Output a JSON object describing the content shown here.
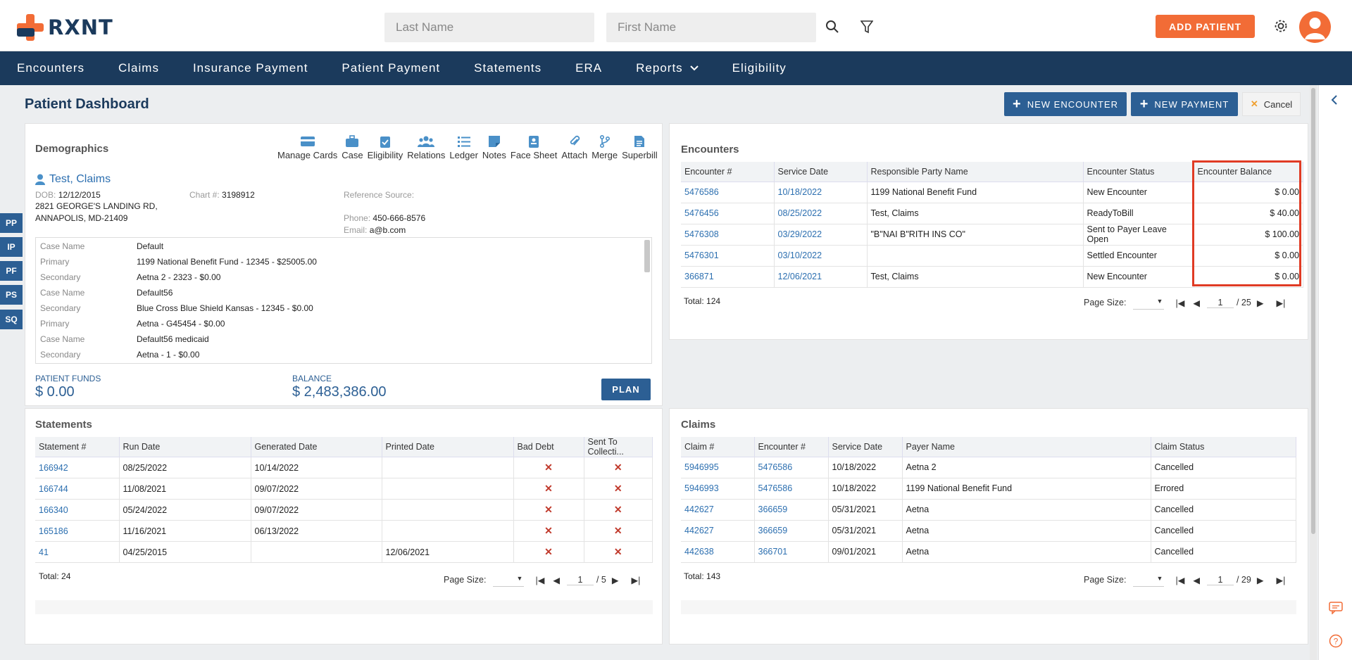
{
  "brand": {
    "name": "RXNT"
  },
  "search": {
    "last_name_placeholder": "Last Name",
    "first_name_placeholder": "First Name"
  },
  "header": {
    "add_patient": "ADD PATIENT"
  },
  "nav": {
    "items": [
      "Encounters",
      "Claims",
      "Insurance Payment",
      "Patient Payment",
      "Statements",
      "ERA",
      "Reports",
      "Eligibility"
    ]
  },
  "page": {
    "title": "Patient Dashboard",
    "new_encounter": "NEW ENCOUNTER",
    "new_payment": "NEW PAYMENT",
    "cancel": "Cancel"
  },
  "side_tabs": [
    "PP",
    "IP",
    "PF",
    "PS",
    "SQ"
  ],
  "demographics": {
    "title": "Demographics",
    "tools": [
      "Manage Cards",
      "Case",
      "Eligibility",
      "Relations",
      "Ledger",
      "Notes",
      "Face Sheet",
      "Attach",
      "Merge",
      "Superbill"
    ],
    "patient_name": "Test, Claims",
    "dob_label": "DOB:",
    "dob": "12/12/2015",
    "address1": "2821 GEORGE'S LANDING RD,",
    "address2": "ANNAPOLIS, MD-21409",
    "chart_label": "Chart #:",
    "chart": "3198912",
    "ref_label": "Reference Source:",
    "phone_label": "Phone:",
    "phone": "450-666-8576",
    "email_label": "Email:",
    "email": "a@b.com",
    "cases": [
      {
        "k": "Case Name",
        "v": "Default"
      },
      {
        "k": "Primary",
        "v": "1199 National Benefit Fund - 12345 - $25005.00"
      },
      {
        "k": "Secondary",
        "v": "Aetna 2 - 2323 - $0.00"
      },
      {
        "k": "Case Name",
        "v": "Default56"
      },
      {
        "k": "Secondary",
        "v": "Blue Cross Blue Shield Kansas - 12345 - $0.00"
      },
      {
        "k": "Primary",
        "v": "Aetna - G45454 - $0.00"
      },
      {
        "k": "Case Name",
        "v": "Default56 medicaid"
      },
      {
        "k": "Secondary",
        "v": "Aetna - 1 - $0.00"
      }
    ],
    "patient_funds_label": "PATIENT FUNDS",
    "patient_funds": "$ 0.00",
    "balance_label": "BALANCE",
    "balance": "$ 2,483,386.00",
    "plan": "PLAN"
  },
  "encounters": {
    "title": "Encounters",
    "headers": [
      "Encounter #",
      "Service Date",
      "Responsible Party Name",
      "Encounter Status",
      "Encounter Balance"
    ],
    "rows": [
      [
        "5476586",
        "10/18/2022",
        "1199 National Benefit Fund",
        "New Encounter",
        "$ 0.00"
      ],
      [
        "5476456",
        "08/25/2022",
        "Test, Claims",
        "ReadyToBill",
        "$ 40.00"
      ],
      [
        "5476308",
        "03/29/2022",
        "\"B\"NAI B\"RITH INS CO\"",
        "Sent to Payer Leave Open",
        "$ 100.00"
      ],
      [
        "5476301",
        "03/10/2022",
        "",
        "Settled Encounter",
        "$ 0.00"
      ],
      [
        "366871",
        "12/06/2021",
        "Test, Claims",
        "New Encounter",
        "$ 0.00"
      ]
    ],
    "total": "Total: 124",
    "page_size_label": "Page Size:",
    "page": "1",
    "of_pages": "/ 25"
  },
  "statements": {
    "title": "Statements",
    "headers": [
      "Statement #",
      "Run Date",
      "Generated Date",
      "Printed Date",
      "Bad Debt",
      "Sent To Collecti..."
    ],
    "rows": [
      [
        "166942",
        "08/25/2022",
        "10/14/2022",
        ""
      ],
      [
        "166744",
        "11/08/2021",
        "09/07/2022",
        ""
      ],
      [
        "166340",
        "05/24/2022",
        "09/07/2022",
        ""
      ],
      [
        "165186",
        "11/16/2021",
        "06/13/2022",
        ""
      ],
      [
        "41",
        "04/25/2015",
        "",
        "12/06/2021"
      ]
    ],
    "x_mark": "✕",
    "total": "Total: 24",
    "page_size_label": "Page Size:",
    "page": "1",
    "of_pages": "/ 5"
  },
  "claims": {
    "title": "Claims",
    "headers": [
      "Claim #",
      "Encounter #",
      "Service Date",
      "Payer Name",
      "Claim Status"
    ],
    "rows": [
      [
        "5946995",
        "5476586",
        "10/18/2022",
        "Aetna 2",
        "Cancelled"
      ],
      [
        "5946993",
        "5476586",
        "10/18/2022",
        "1199 National Benefit Fund",
        "Errored"
      ],
      [
        "442627",
        "366659",
        "05/31/2021",
        "Aetna",
        "Cancelled"
      ],
      [
        "442627",
        "366659",
        "05/31/2021",
        "Aetna",
        "Cancelled"
      ],
      [
        "442638",
        "366701",
        "09/01/2021",
        "Aetna",
        "Cancelled"
      ]
    ],
    "total": "Total: 143",
    "page_size_label": "Page Size:",
    "page": "1",
    "of_pages": "/ 29"
  },
  "colors": {
    "brand_orange": "#f26c36",
    "navy": "#1b3a5c",
    "primary_blue": "#2c5f94",
    "link_blue": "#2c6fb0",
    "highlight_red": "#e03b24"
  }
}
